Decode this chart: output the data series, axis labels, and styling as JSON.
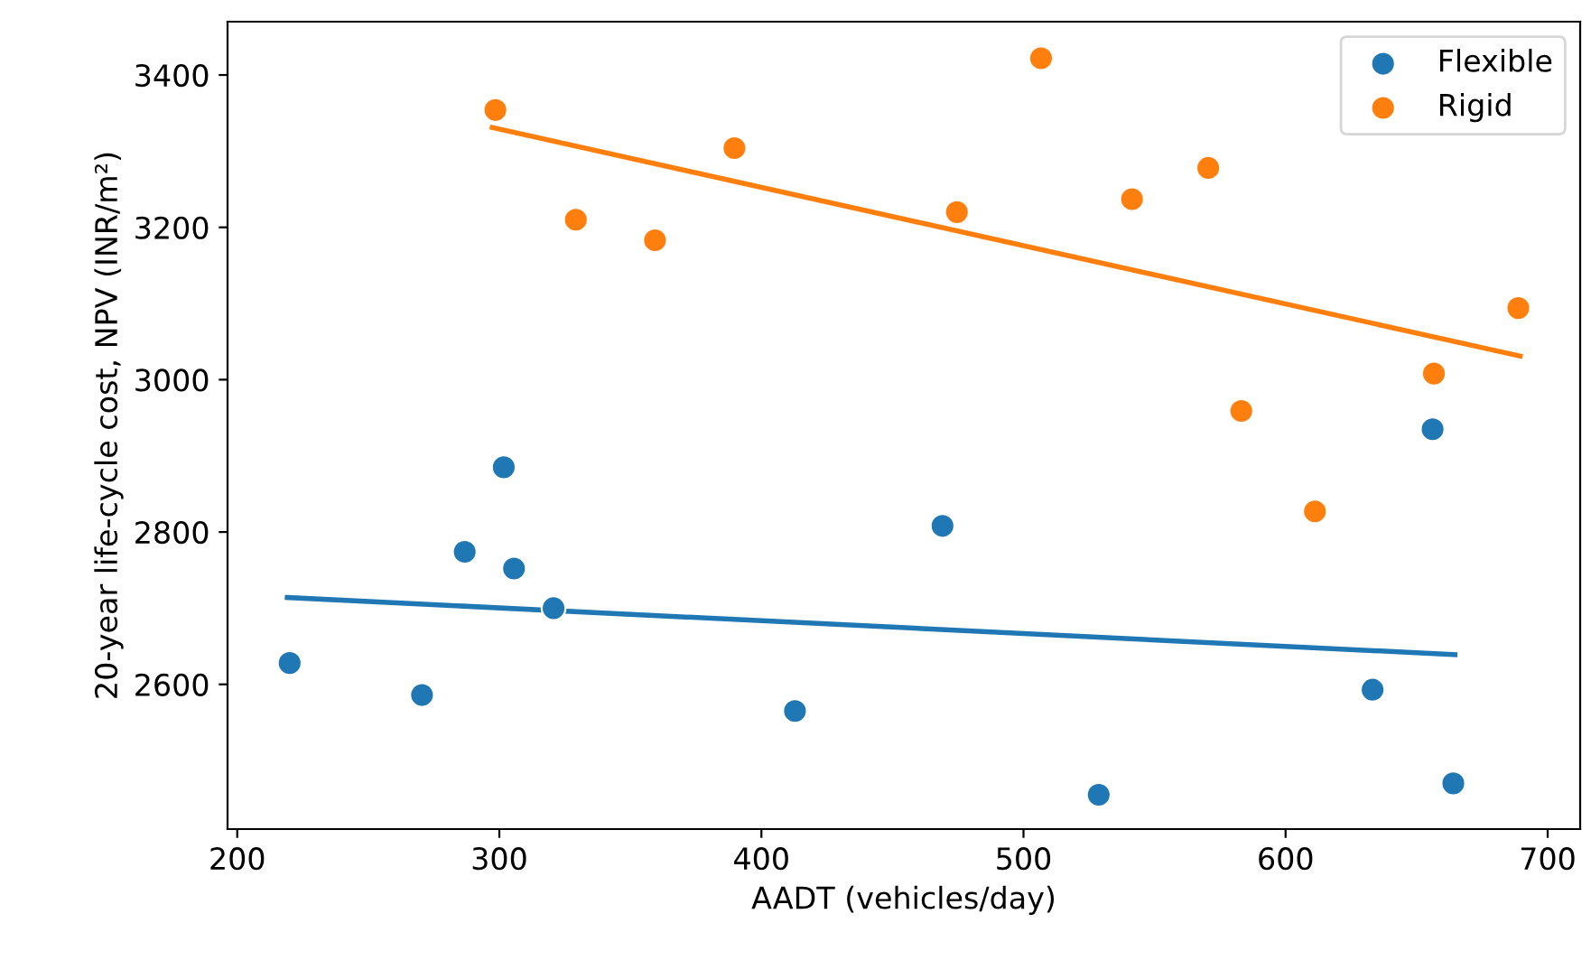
{
  "chart_data": {
    "type": "scatter",
    "xlabel": "AADT (vehicles/day)",
    "ylabel": "20-year life-cycle cost, NPV (INR/m²)",
    "xlim": [
      196.3,
      712.4
    ],
    "ylim": [
      2410,
      3470
    ],
    "xticks": [
      200,
      300,
      400,
      500,
      600,
      700
    ],
    "yticks": [
      2600,
      2800,
      3000,
      3200,
      3400
    ],
    "grid": false,
    "legend": "top right",
    "marker": "circle",
    "series": [
      {
        "name": "Flexible",
        "color": "#1f77b4",
        "x": [
          220.0,
          270.5,
          286.8,
          301.7,
          305.6,
          320.7,
          412.8,
          469.1,
          528.7,
          656.1,
          633.2,
          664.0
        ],
        "values": [
          2628,
          2586,
          2774,
          2885,
          2752,
          2700,
          2565,
          2808,
          2455,
          2935,
          2593,
          2470
        ]
      },
      {
        "name": "Rigid",
        "color": "#ff7f0e",
        "x": [
          298.5,
          329.2,
          359.4,
          389.7,
          506.7,
          474.6,
          541.4,
          570.5,
          583.1,
          611.2,
          656.6,
          688.8
        ],
        "values": [
          3354,
          3210,
          3183,
          3304,
          3422,
          3220,
          3237,
          3278,
          2959,
          2827,
          3008,
          3094
        ]
      },
      {
        "type": "line",
        "marker": "none",
        "color": "#1f77b4",
        "x": [
          219.1,
          664.6
        ],
        "values": [
          2714,
          2639
        ]
      },
      {
        "type": "line",
        "marker": "none",
        "color": "#ff7f0e",
        "x": [
          297.3,
          689.5
        ],
        "values": [
          3331,
          3031
        ]
      }
    ]
  }
}
